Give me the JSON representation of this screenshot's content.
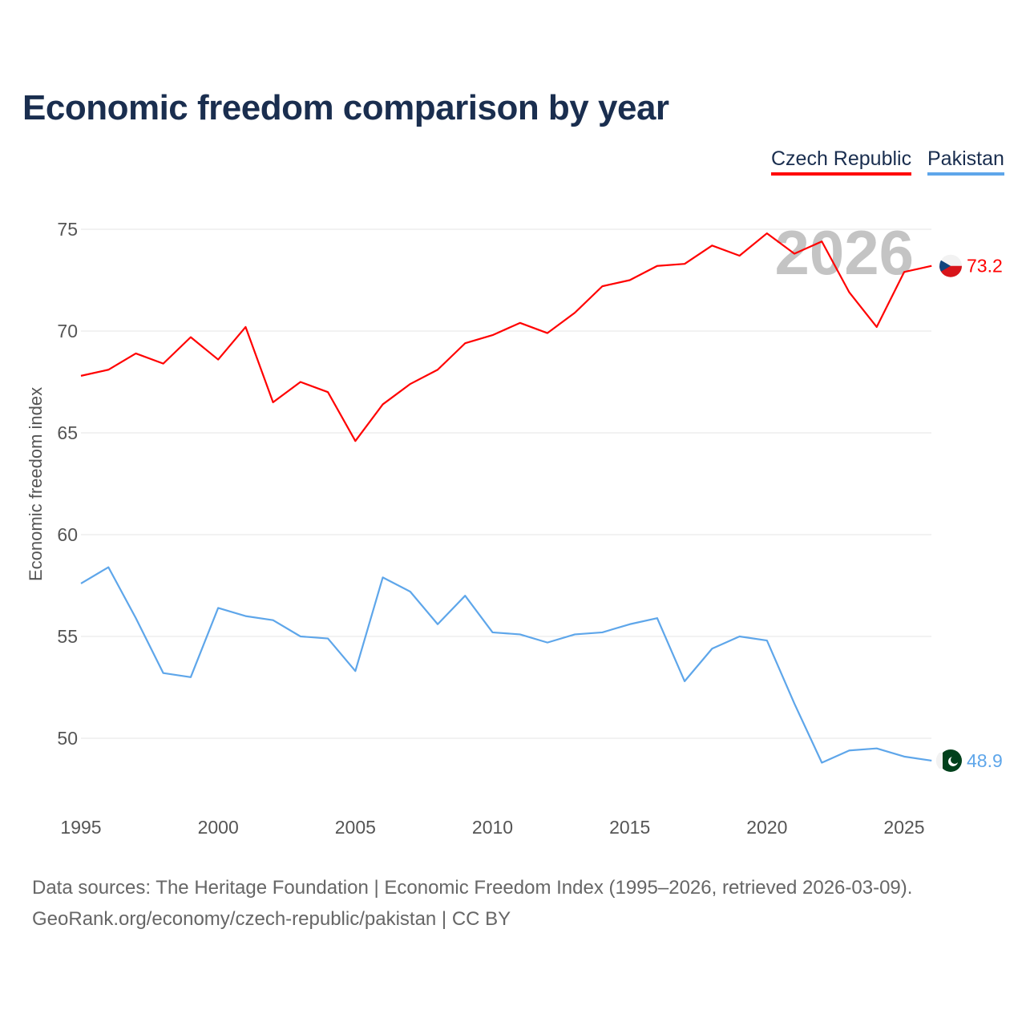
{
  "chart_data": {
    "type": "line",
    "title": "Economic freedom comparison by year",
    "ylabel": "Economic freedom index",
    "xlabel": "",
    "ylim": [
      46.5,
      77
    ],
    "xlim": [
      1995,
      2026
    ],
    "yticks": [
      50,
      55,
      60,
      65,
      70,
      75
    ],
    "xticks": [
      1995,
      2000,
      2005,
      2010,
      2015,
      2020,
      2025
    ],
    "grid": true,
    "legend_position": "top-right",
    "watermark_year": "2026",
    "x": [
      1995,
      1996,
      1997,
      1998,
      1999,
      2000,
      2001,
      2002,
      2003,
      2004,
      2005,
      2006,
      2007,
      2008,
      2009,
      2010,
      2011,
      2012,
      2013,
      2014,
      2015,
      2016,
      2017,
      2018,
      2019,
      2020,
      2021,
      2022,
      2023,
      2024,
      2025,
      2026
    ],
    "series": [
      {
        "name": "Czech Republic",
        "color": "#ff0000",
        "end_label": "73.2",
        "values": [
          67.8,
          68.1,
          68.9,
          68.4,
          69.7,
          68.6,
          70.2,
          66.5,
          67.5,
          67.0,
          64.6,
          66.4,
          67.4,
          68.1,
          69.4,
          69.8,
          70.4,
          69.9,
          70.9,
          72.2,
          72.5,
          73.2,
          73.3,
          74.2,
          73.7,
          74.8,
          73.8,
          74.4,
          71.9,
          70.2,
          72.9,
          73.2
        ]
      },
      {
        "name": "Pakistan",
        "color": "#5ea6ea",
        "end_label": "48.9",
        "values": [
          57.6,
          58.4,
          55.9,
          53.2,
          53.0,
          56.4,
          56.0,
          55.8,
          55.0,
          54.9,
          53.3,
          57.9,
          57.2,
          55.6,
          57.0,
          55.2,
          55.1,
          54.7,
          55.1,
          55.2,
          55.6,
          55.9,
          52.8,
          54.4,
          55.0,
          54.8,
          51.7,
          48.8,
          49.4,
          49.5,
          49.1,
          48.9
        ]
      }
    ]
  },
  "footer": {
    "line1": "Data sources: The Heritage Foundation | Economic Freedom Index (1995–2026, retrieved 2026-03-09).",
    "line2": "GeoRank.org/economy/czech-republic/pakistan | CC BY"
  }
}
